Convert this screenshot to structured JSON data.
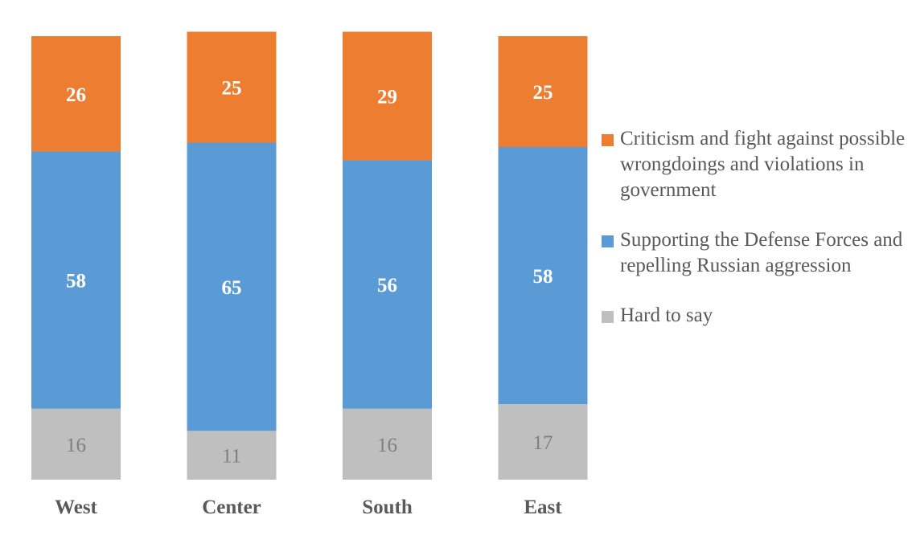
{
  "chart_data": {
    "type": "bar",
    "stacked": true,
    "title": "",
    "xlabel": "",
    "ylabel": "",
    "categories": [
      "West",
      "Center",
      "South",
      "East"
    ],
    "series": [
      {
        "name": "Hard to say",
        "color": "#bfbfbf",
        "label_color": "#7f7f7f",
        "label_bold": false,
        "values": [
          16,
          11,
          16,
          17
        ]
      },
      {
        "name": "Supporting the Defense Forces and repelling Russian aggression",
        "color": "#5b9bd5",
        "label_color": "#ffffff",
        "label_bold": true,
        "values": [
          58,
          65,
          56,
          58
        ]
      },
      {
        "name": "Criticism and fight against possible wrongdoings and violations in government",
        "color": "#ed7d31",
        "label_color": "#ffffff",
        "label_bold": true,
        "values": [
          26,
          25,
          29,
          25
        ]
      }
    ],
    "ylim": [
      0,
      100
    ],
    "grid": false,
    "legend_position": "right",
    "legend_order": [
      {
        "name": "Criticism and fight against possible wrongdoings and violations in government",
        "color": "#ed7d31"
      },
      {
        "name": "Supporting the Defense Forces and repelling Russian aggression",
        "color": "#5b9bd5"
      },
      {
        "name": "Hard to say",
        "color": "#bfbfbf"
      }
    ]
  }
}
